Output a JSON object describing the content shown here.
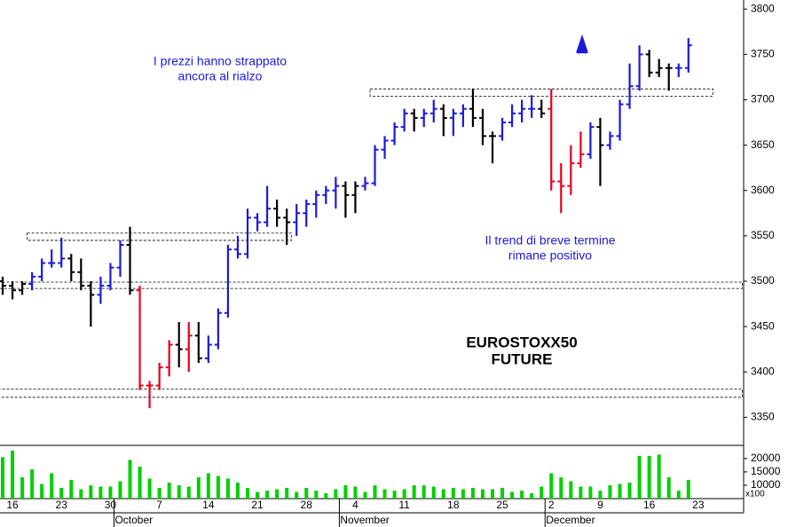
{
  "chart_data": {
    "type": "ohlc",
    "categories": [
      null,
      "16",
      null,
      null,
      null,
      null,
      "23",
      null,
      null,
      null,
      null,
      "30",
      null,
      null,
      null,
      null,
      "7",
      null,
      null,
      null,
      null,
      "14",
      null,
      null,
      null,
      null,
      "21",
      null,
      null,
      null,
      null,
      "28",
      null,
      null,
      null,
      null,
      "4",
      null,
      null,
      null,
      null,
      "11",
      null,
      null,
      null,
      null,
      "18",
      null,
      null,
      null,
      null,
      "25",
      null,
      null,
      null,
      null,
      "2",
      null,
      null,
      null,
      null,
      "9",
      null,
      null,
      null,
      null,
      "16",
      null,
      null,
      null,
      null,
      "23",
      null,
      null,
      null,
      null
    ],
    "months": [
      null,
      null,
      null,
      null,
      null,
      null,
      null,
      null,
      null,
      null,
      null,
      null,
      "October",
      null,
      null,
      null,
      null,
      null,
      null,
      null,
      null,
      null,
      null,
      null,
      null,
      null,
      null,
      null,
      null,
      null,
      null,
      null,
      null,
      null,
      null,
      "November",
      null,
      null,
      null,
      null,
      null,
      null,
      null,
      null,
      null,
      null,
      null,
      null,
      null,
      null,
      null,
      null,
      null,
      null,
      null,
      null,
      "December",
      null,
      null,
      null,
      null,
      null,
      null,
      null,
      null,
      null,
      null,
      null,
      null,
      null,
      null,
      null,
      null,
      null,
      null,
      null
    ],
    "open": [
      3500,
      3495,
      3490,
      3497,
      3505,
      3520,
      3520,
      3525,
      3510,
      3495,
      3485,
      3495,
      3515,
      3540,
      3490,
      3385,
      3385,
      3405,
      3430,
      3425,
      3440,
      3415,
      3430,
      3465,
      3535,
      3530,
      3570,
      3565,
      3580,
      3570,
      3565,
      3575,
      3585,
      3595,
      3600,
      3605,
      3595,
      3605,
      3608,
      3645,
      3655,
      3670,
      3685,
      3680,
      3685,
      3690,
      3680,
      3685,
      3690,
      3680,
      3660,
      3660,
      3675,
      3685,
      3690,
      3690,
      3690,
      3610,
      3605,
      3630,
      3640,
      3670,
      3650,
      3660,
      3695,
      3715,
      3750,
      3730,
      3735,
      3735,
      3735,
      null,
      null,
      null,
      null,
      null
    ],
    "high": [
      3505,
      3500,
      3500,
      3510,
      3525,
      3535,
      3548,
      3530,
      3525,
      3500,
      3505,
      3520,
      3545,
      3560,
      3495,
      3390,
      3410,
      3435,
      3455,
      3455,
      3455,
      3440,
      3470,
      3540,
      3550,
      3580,
      3575,
      3605,
      3590,
      3580,
      3585,
      3590,
      3600,
      3605,
      3615,
      3610,
      3610,
      3615,
      3650,
      3660,
      3675,
      3690,
      3690,
      3690,
      3700,
      3695,
      3690,
      3695,
      3712,
      3690,
      3665,
      3680,
      3695,
      3700,
      3705,
      3700,
      3712,
      3630,
      3650,
      3665,
      3675,
      3680,
      3665,
      3700,
      3740,
      3760,
      3755,
      3745,
      3740,
      3740,
      3768,
      null,
      null,
      null,
      null,
      null
    ],
    "low": [
      3485,
      3480,
      3485,
      3490,
      3500,
      3515,
      3515,
      3500,
      3490,
      3450,
      3475,
      3490,
      3505,
      3485,
      3380,
      3360,
      3380,
      3395,
      3405,
      3400,
      3410,
      3410,
      3425,
      3460,
      3525,
      3525,
      3555,
      3560,
      3560,
      3540,
      3550,
      3560,
      3570,
      3585,
      3580,
      3570,
      3575,
      3600,
      3605,
      3635,
      3650,
      3665,
      3665,
      3670,
      3675,
      3660,
      3660,
      3670,
      3670,
      3650,
      3630,
      3655,
      3670,
      3675,
      3680,
      3680,
      3600,
      3575,
      3595,
      3625,
      3635,
      3605,
      3645,
      3655,
      3690,
      3710,
      3725,
      3725,
      3710,
      3725,
      3730,
      null,
      null,
      null,
      null,
      null
    ],
    "close": [
      3495,
      3490,
      3497,
      3505,
      3520,
      3520,
      3525,
      3510,
      3495,
      3485,
      3495,
      3515,
      3540,
      3490,
      3385,
      3385,
      3405,
      3430,
      3425,
      3440,
      3415,
      3430,
      3465,
      3535,
      3530,
      3570,
      3565,
      3580,
      3570,
      3565,
      3575,
      3585,
      3595,
      3600,
      3605,
      3595,
      3605,
      3608,
      3645,
      3655,
      3670,
      3685,
      3680,
      3685,
      3690,
      3680,
      3685,
      3690,
      3680,
      3660,
      3660,
      3675,
      3685,
      3690,
      3690,
      3685,
      3610,
      3605,
      3630,
      3640,
      3670,
      3650,
      3660,
      3695,
      3715,
      3750,
      3730,
      3735,
      3735,
      3735,
      3760,
      null,
      null,
      null,
      null,
      null
    ],
    "bar_colors": [
      "k",
      "k",
      "k",
      "b",
      "b",
      "b",
      "b",
      "k",
      "k",
      "k",
      "b",
      "b",
      "b",
      "k",
      "r",
      "r",
      "r",
      "r",
      "k",
      "r",
      "k",
      "b",
      "b",
      "b",
      "b",
      "b",
      "b",
      "b",
      "k",
      "k",
      "b",
      "b",
      "b",
      "b",
      "b",
      "k",
      "k",
      "b",
      "b",
      "b",
      "b",
      "b",
      "k",
      "b",
      "b",
      "k",
      "b",
      "b",
      "k",
      "k",
      "k",
      "b",
      "b",
      "b",
      "b",
      "k",
      "r",
      "r",
      "r",
      "r",
      "b",
      "k",
      "b",
      "b",
      "b",
      "b",
      "k",
      "k",
      "k",
      "b",
      "b",
      null,
      null,
      null,
      null,
      null
    ],
    "palette": {
      "b": "#1a1adc",
      "k": "#000000",
      "r": "#e8001c"
    },
    "volume": [
      20500,
      23000,
      13000,
      16000,
      10500,
      14500,
      9000,
      12000,
      8500,
      10000,
      9500,
      9500,
      11500,
      19500,
      17000,
      12500,
      9000,
      11000,
      10000,
      9500,
      13000,
      14500,
      13500,
      12500,
      11000,
      9000,
      7500,
      8000,
      8500,
      9000,
      7500,
      9000,
      8000,
      7000,
      8500,
      10000,
      9500,
      7500,
      10000,
      8500,
      8000,
      8500,
      10000,
      10000,
      9500,
      8500,
      9000,
      8500,
      9000,
      8500,
      8500,
      9000,
      7500,
      8000,
      7000,
      9500,
      14500,
      13000,
      11500,
      9500,
      9500,
      8000,
      10000,
      10500,
      11000,
      21000,
      21000,
      21500,
      13000,
      8000,
      12000,
      null,
      null,
      null,
      null,
      null
    ],
    "volume_color": "#00d000",
    "ylim": [
      3320,
      3810
    ],
    "yticks": [
      3350,
      3400,
      3450,
      3500,
      3550,
      3600,
      3650,
      3700,
      3750,
      3800
    ],
    "volume_ylim": [
      5000,
      24600
    ],
    "volume_yticks": [
      10000,
      15000,
      20000
    ],
    "volume_unit": "x100",
    "levels": [
      {
        "low": 3545,
        "high": 3553,
        "from": 3,
        "to": 29
      },
      {
        "low": 3492,
        "high": 3499,
        "from": 0,
        "to": 75
      },
      {
        "low": 3372,
        "high": 3381,
        "from": 0,
        "to": 75
      },
      {
        "low": 3704,
        "high": 3712,
        "from": 38,
        "to": 72
      }
    ],
    "annotations": [
      {
        "lines": [
          "I prezzi hanno strappato",
          "ancora al rialzo"
        ],
        "color": "#1a1adc"
      },
      {
        "lines": [
          "Il trend di breve termine",
          "rimane positivo"
        ],
        "color": "#1a1adc"
      },
      {
        "lines": [
          "EUROSTOXX50",
          "FUTURE"
        ],
        "color": "#000000"
      }
    ]
  }
}
